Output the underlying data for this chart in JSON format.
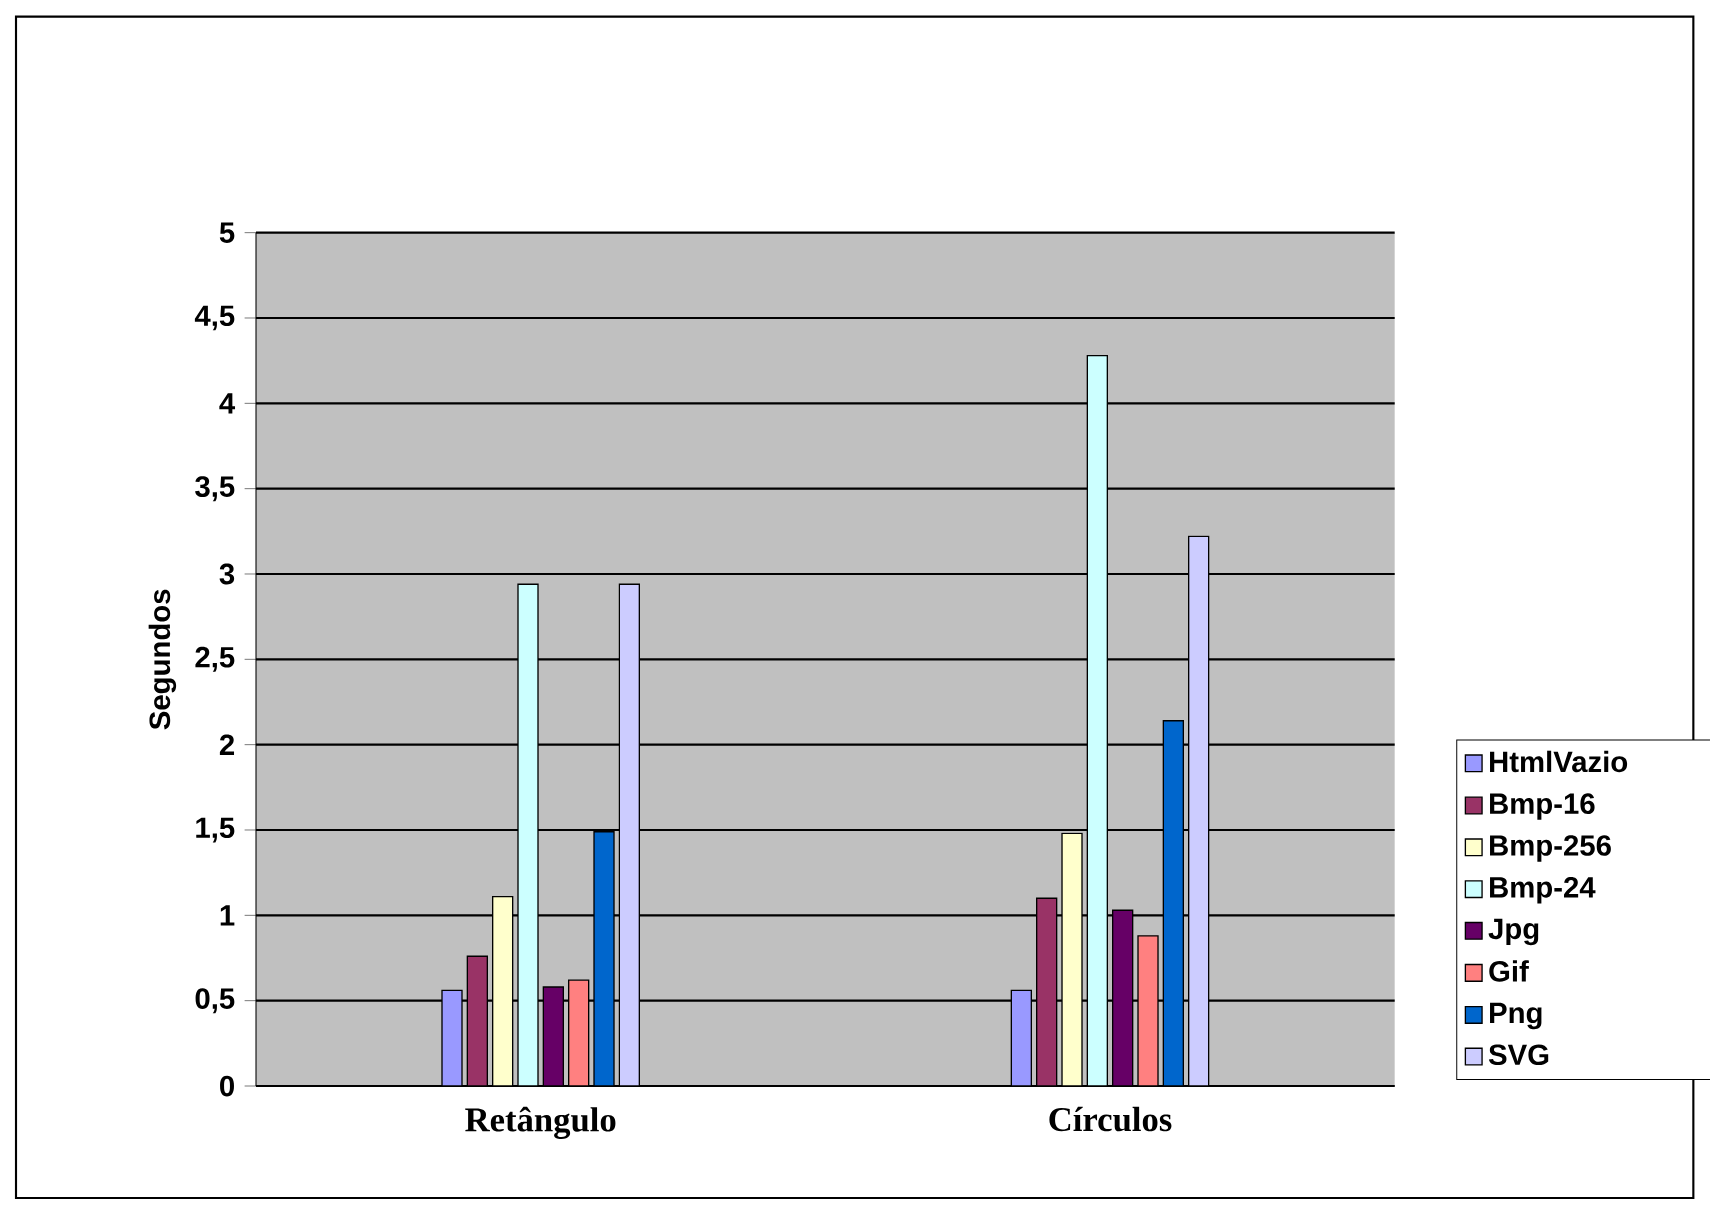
{
  "chart_data": {
    "type": "bar",
    "ylabel": "Segundos",
    "categories": [
      "Retângulo",
      "Círculos"
    ],
    "series": [
      {
        "name": "HtmlVazio",
        "color": "#9999ff",
        "values": [
          0.56,
          0.56
        ]
      },
      {
        "name": "Bmp-16",
        "color": "#993366",
        "values": [
          0.76,
          1.1
        ]
      },
      {
        "name": "Bmp-256",
        "color": "#ffffcc",
        "values": [
          1.11,
          1.48
        ]
      },
      {
        "name": "Bmp-24",
        "color": "#ccffff",
        "values": [
          2.94,
          4.28
        ]
      },
      {
        "name": "Jpg",
        "color": "#660066",
        "values": [
          0.58,
          1.03
        ]
      },
      {
        "name": "Gif",
        "color": "#ff8080",
        "values": [
          0.62,
          0.88
        ]
      },
      {
        "name": "Png",
        "color": "#0066cc",
        "values": [
          1.49,
          2.14
        ]
      },
      {
        "name": "SVG",
        "color": "#ccccff",
        "values": [
          2.94,
          3.22
        ]
      }
    ],
    "ylim": [
      0,
      5
    ],
    "yticks": [
      0,
      {
        "value": 0.5,
        "label": "0,5"
      },
      1,
      {
        "value": 1.5,
        "label": "1,5"
      },
      2,
      {
        "value": 2.5,
        "label": "2,5"
      },
      3,
      {
        "value": 3.5,
        "label": "3,5"
      },
      4,
      {
        "value": 4.5,
        "label": "4,5"
      },
      5
    ],
    "grid": "y",
    "legend": "right"
  }
}
